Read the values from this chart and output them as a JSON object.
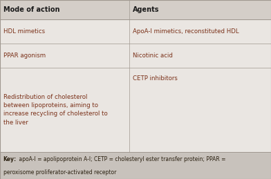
{
  "header": [
    "Mode of action",
    "Agents"
  ],
  "rows": [
    [
      "HDL mimetics",
      "ApoA-I mimetics, reconstituted HDL"
    ],
    [
      "PPAR agonism",
      "Nicotinic acid"
    ],
    [
      "Redistribution of cholesterol\nbetween lipoproteins, aiming to\nincrease recycling of cholesterol to\nthe liver",
      "CETP inhibitors"
    ]
  ],
  "key_bold": "Key:",
  "key_rest_line1": " apoA-I = apolipoprotein A-I; CETP = cholesteryl ester transfer protein; PPAR =",
  "key_rest_line2": "peroxisome proliferator-activated receptor",
  "header_bg": "#d4cec8",
  "row_bg": "#eae6e2",
  "key_bg": "#c8c2bc",
  "header_color": "#1a1a1a",
  "row_color": "#7a3018",
  "key_color": "#2a2010",
  "col_split": 0.478,
  "fig_width": 3.92,
  "fig_height": 2.59,
  "dpi": 100,
  "border_color": "#a09890"
}
